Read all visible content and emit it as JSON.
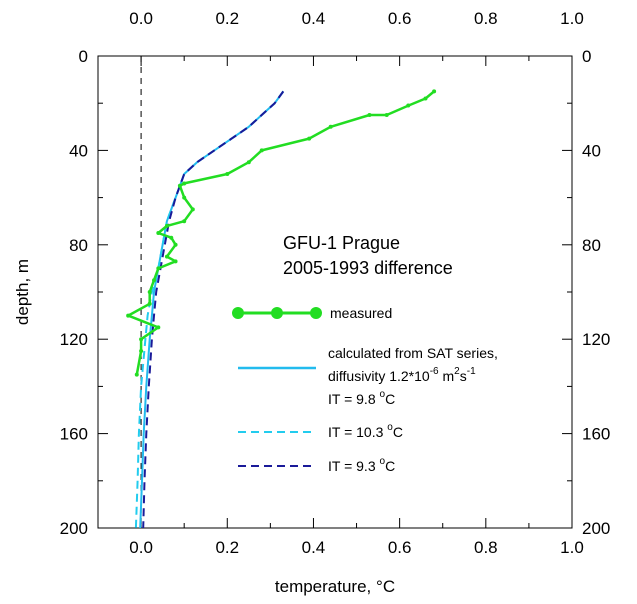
{
  "chart_data": {
    "type": "line",
    "title": "",
    "annotation": [
      "GFU-1 Prague",
      "2005-1993 difference"
    ],
    "xlabel": "temperature,",
    "xlabel_unit": "°C",
    "ylabel": "depth, m",
    "xlim": [
      -0.1,
      1.0
    ],
    "ylim": [
      200,
      0
    ],
    "x_ticks": [
      "0.0",
      "0.2",
      "0.4",
      "0.6",
      "0.8",
      "1.0"
    ],
    "y_ticks": [
      "0",
      "40",
      "80",
      "120",
      "160",
      "200"
    ],
    "grid": false,
    "legend_position": "lower-middle",
    "zero_line": {
      "x": 0,
      "style": "dashed",
      "color": "#000000"
    },
    "series": [
      {
        "name": "measured",
        "color": "#22dd22",
        "style": "solid-markers",
        "points": [
          [
            0.68,
            15
          ],
          [
            0.66,
            18
          ],
          [
            0.62,
            21
          ],
          [
            0.57,
            25
          ],
          [
            0.53,
            25
          ],
          [
            0.44,
            30
          ],
          [
            0.39,
            35
          ],
          [
            0.28,
            40
          ],
          [
            0.25,
            45
          ],
          [
            0.2,
            50
          ],
          [
            0.1,
            54
          ],
          [
            0.09,
            55
          ],
          [
            0.1,
            60
          ],
          [
            0.12,
            65
          ],
          [
            0.1,
            70
          ],
          [
            0.06,
            72
          ],
          [
            0.04,
            75
          ],
          [
            0.07,
            77
          ],
          [
            0.08,
            80
          ],
          [
            0.06,
            85
          ],
          [
            0.08,
            87
          ],
          [
            0.04,
            90
          ],
          [
            0.03,
            95
          ],
          [
            0.02,
            100
          ],
          [
            0.02,
            105
          ],
          [
            -0.03,
            110
          ],
          [
            0.04,
            115
          ],
          [
            0.0,
            120
          ],
          [
            0.0,
            125
          ],
          [
            -0.01,
            135
          ]
        ]
      },
      {
        "name": "calculated from SAT series,",
        "name_line2": "diffusivity 1.2*10",
        "name_exp": "-6",
        "name_unit_a": "m",
        "name_unit_a_exp": "2",
        "name_unit_b": "s",
        "name_unit_b_exp": "-1",
        "sub_label": "IT = 9.8",
        "sub_label_unit": "C",
        "sub_label_unit_sup": "o",
        "color": "#22bbee",
        "style": "solid",
        "points": [
          [
            0.33,
            15
          ],
          [
            0.31,
            20
          ],
          [
            0.28,
            25
          ],
          [
            0.25,
            30
          ],
          [
            0.21,
            35
          ],
          [
            0.17,
            40
          ],
          [
            0.13,
            45
          ],
          [
            0.1,
            50
          ],
          [
            0.08,
            60
          ],
          [
            0.06,
            70
          ],
          [
            0.05,
            80
          ],
          [
            0.04,
            90
          ],
          [
            0.03,
            100
          ],
          [
            0.025,
            110
          ],
          [
            0.02,
            120
          ],
          [
            0.012,
            140
          ],
          [
            0.006,
            160
          ],
          [
            0.002,
            180
          ],
          [
            -0.002,
            200
          ]
        ]
      },
      {
        "name": "IT = 10.3",
        "name_unit": "C",
        "name_unit_sup": "o",
        "color": "#22ccee",
        "style": "dashed",
        "points": [
          [
            0.33,
            15
          ],
          [
            0.31,
            20
          ],
          [
            0.28,
            25
          ],
          [
            0.25,
            30
          ],
          [
            0.21,
            35
          ],
          [
            0.17,
            40
          ],
          [
            0.13,
            45
          ],
          [
            0.1,
            50
          ],
          [
            0.08,
            60
          ],
          [
            0.06,
            70
          ],
          [
            0.05,
            80
          ],
          [
            0.04,
            90
          ],
          [
            0.025,
            100
          ],
          [
            0.015,
            110
          ],
          [
            0.01,
            120
          ],
          [
            0.0,
            140
          ],
          [
            -0.005,
            160
          ],
          [
            -0.008,
            180
          ],
          [
            -0.012,
            200
          ]
        ]
      },
      {
        "name": "IT = 9.3",
        "name_unit": "C",
        "name_unit_sup": "o",
        "color": "#1a1a99",
        "style": "dashed",
        "points": [
          [
            0.33,
            15
          ],
          [
            0.31,
            20
          ],
          [
            0.28,
            25
          ],
          [
            0.25,
            30
          ],
          [
            0.21,
            35
          ],
          [
            0.17,
            40
          ],
          [
            0.13,
            45
          ],
          [
            0.1,
            50
          ],
          [
            0.08,
            60
          ],
          [
            0.065,
            70
          ],
          [
            0.055,
            80
          ],
          [
            0.045,
            90
          ],
          [
            0.035,
            100
          ],
          [
            0.03,
            110
          ],
          [
            0.025,
            120
          ],
          [
            0.018,
            140
          ],
          [
            0.012,
            160
          ],
          [
            0.008,
            180
          ],
          [
            0.005,
            200
          ]
        ]
      }
    ]
  }
}
